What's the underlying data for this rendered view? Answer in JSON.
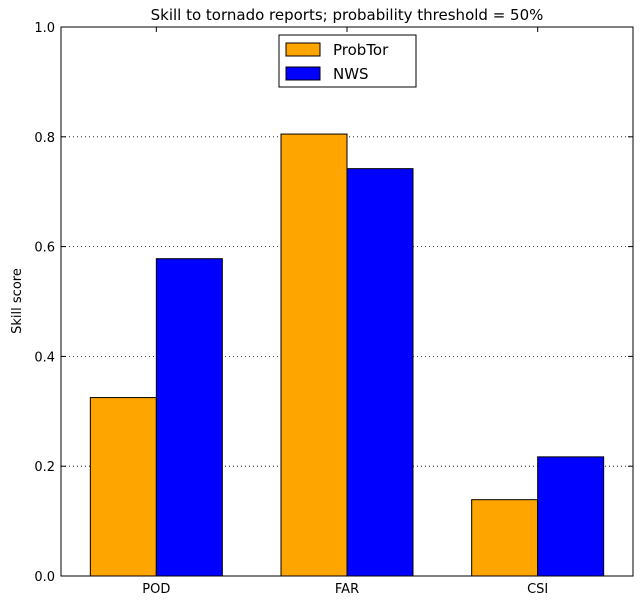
{
  "chart_data": {
    "type": "bar",
    "title": "Skill to tornado reports; probability threshold = 50%",
    "xlabel": "",
    "ylabel": "Skill score",
    "categories": [
      "POD",
      "FAR",
      "CSI"
    ],
    "ylim": [
      0,
      1.0
    ],
    "yticks": [
      "0.0",
      "0.2",
      "0.4",
      "0.6",
      "0.8",
      "1.0"
    ],
    "grid": "horizontal dotted",
    "legend_position": "top-center",
    "series": [
      {
        "name": "ProbTor",
        "color": "#FFA500",
        "values": [
          0.325,
          0.805,
          0.139
        ]
      },
      {
        "name": "NWS",
        "color": "#0000FF",
        "values": [
          0.578,
          0.742,
          0.217
        ]
      }
    ]
  }
}
